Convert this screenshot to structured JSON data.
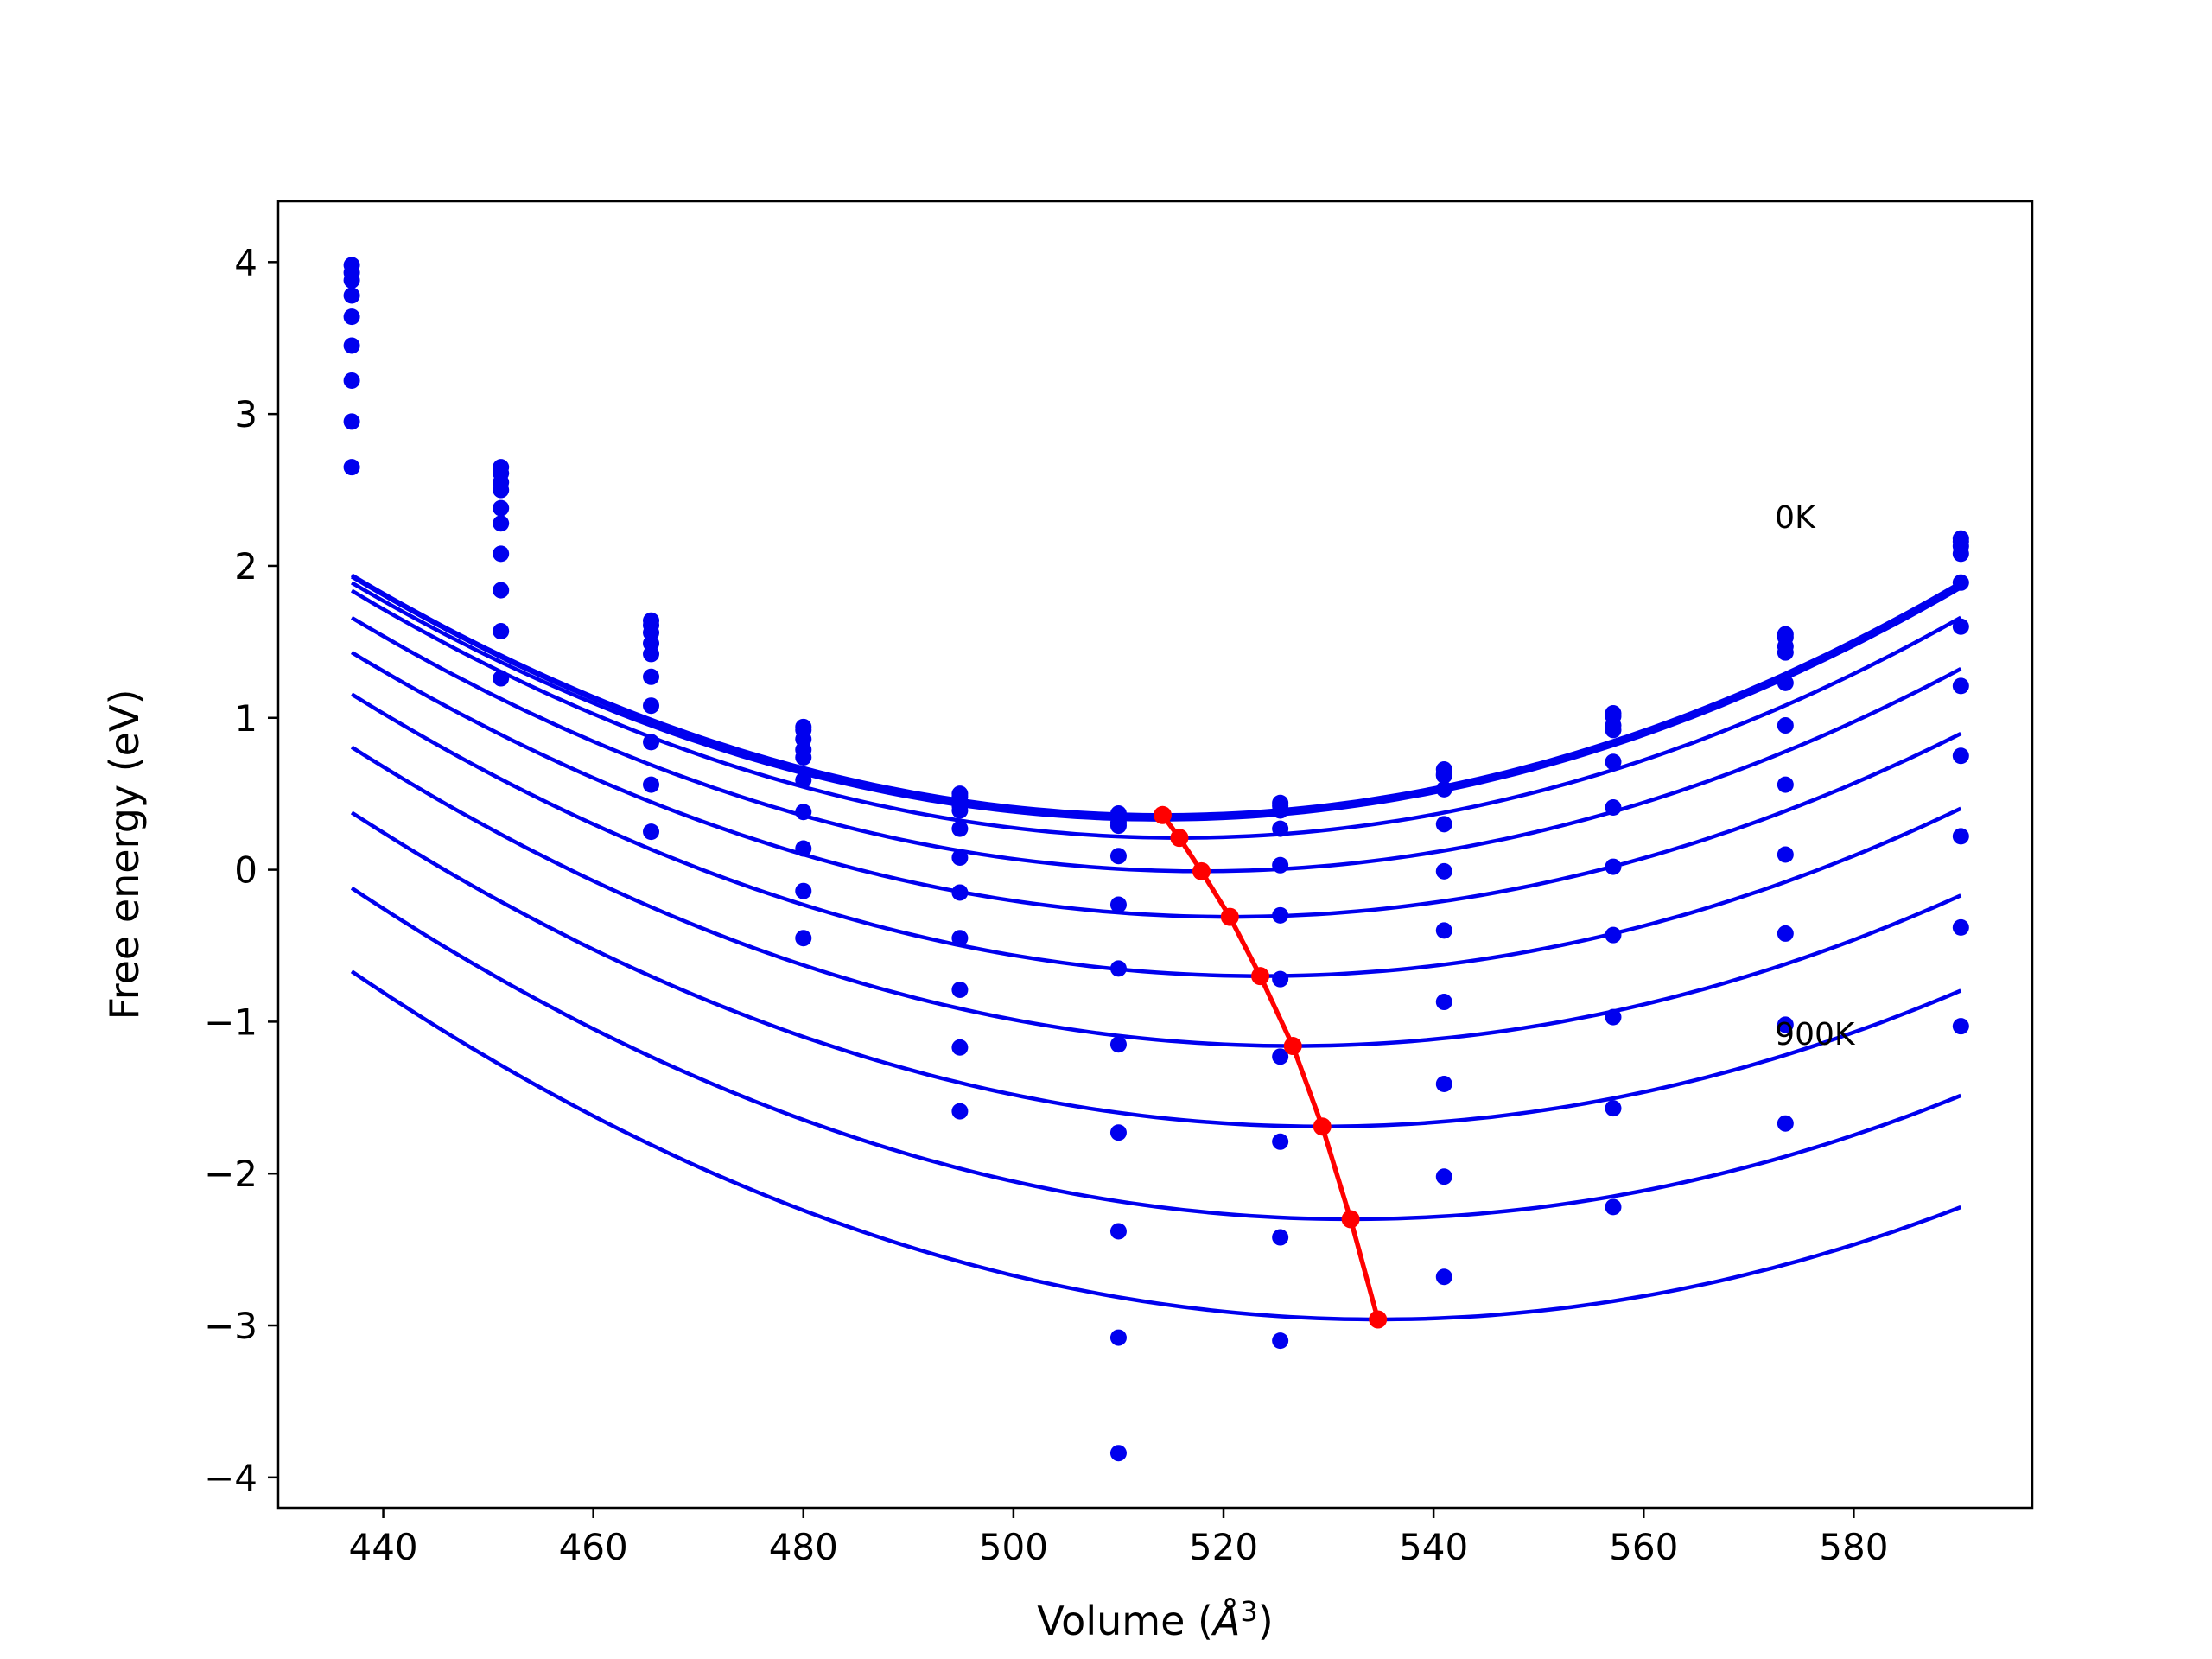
{
  "chart_data": {
    "type": "scatter",
    "title": "",
    "xlabel": "Volume (",
    "xlabel_unit": "Å",
    "xlabel_sup": "3",
    "xlabel_close": ")",
    "ylabel": "Free energy (eV)",
    "xlim": [
      430,
      597
    ],
    "ylim": [
      -4.2,
      4.4
    ],
    "xticks": [
      440,
      460,
      480,
      500,
      520,
      540,
      560,
      580
    ],
    "yticks": [
      4,
      3,
      2,
      1,
      0,
      -1,
      -2,
      -3,
      -4
    ],
    "ytick_labels": [
      "4",
      "3",
      "2",
      "1",
      "0",
      "−1",
      "−2",
      "−3",
      "−4"
    ],
    "grid": false,
    "annotations": [
      {
        "text": "0K",
        "x": 572.5,
        "y": 2.25
      },
      {
        "text": "900K",
        "x": 572.5,
        "y": -1.15
      }
    ],
    "volumes": [
      437.0,
      451.2,
      465.5,
      480.0,
      494.9,
      510.0,
      525.4,
      541.0,
      557.1,
      573.5,
      590.2
    ],
    "series": [
      {
        "values": [
          3.98,
          2.65,
          1.64,
          0.94,
          0.5,
          0.37,
          0.44,
          0.66,
          1.03,
          1.55,
          2.18
        ],
        "fit": [
          437.0,
          590.2,
          514.2,
          0.36,
          0.000265
        ]
      },
      {
        "values": [
          3.93,
          2.61,
          1.61,
          0.92,
          0.48,
          0.35,
          0.42,
          0.63,
          1.01,
          1.53,
          2.16
        ],
        "fit": [
          437.0,
          590.2,
          514.3,
          0.34,
          0.000266
        ]
      },
      {
        "values": [
          3.88,
          2.55,
          1.56,
          0.86,
          0.42,
          0.29,
          0.39,
          0.62,
          0.95,
          1.47,
          2.13
        ],
        "fit": [
          437.0,
          590.2,
          514.0,
          0.33,
          0.000263
        ]
      },
      {
        "values": [
          3.78,
          2.5,
          1.49,
          0.79,
          0.39,
          0.31,
          0.27,
          0.53,
          0.92,
          1.43,
          2.08
        ],
        "fit": [
          437.0,
          590.2,
          515.8,
          0.21,
          0.000262
        ]
      },
      {
        "values": [
          3.64,
          2.38,
          1.42,
          0.74,
          0.27,
          0.09,
          0.03,
          0.3,
          0.71,
          1.23,
          1.89
        ],
        "fit": [
          437.0,
          590.2,
          517.9,
          -0.01,
          0.000255
        ]
      },
      {
        "values": [
          3.45,
          2.28,
          1.27,
          0.59,
          0.08,
          -0.23,
          -0.3,
          -0.01,
          0.41,
          0.95,
          1.6
        ],
        "fit": [
          437.0,
          590.2,
          520.6,
          -0.31,
          0.000249
        ]
      },
      {
        "values": [
          3.22,
          2.08,
          1.08,
          0.38,
          -0.15,
          -0.65,
          -0.72,
          -0.4,
          0.02,
          0.56,
          1.21
        ],
        "fit": [
          437.0,
          590.2,
          523.5,
          -0.7,
          0.000248
        ]
      },
      {
        "values": [
          2.95,
          1.84,
          0.84,
          0.14,
          -0.45,
          -1.15,
          -1.23,
          -0.87,
          -0.43,
          0.1,
          0.75
        ],
        "fit": [
          437.0,
          590.2,
          526.6,
          -1.16,
          0.000245
        ]
      },
      {
        "values": [
          2.65,
          1.57,
          0.56,
          -0.14,
          -0.79,
          -1.73,
          -1.79,
          -1.41,
          -0.97,
          -0.42,
          0.22
        ],
        "fit": [
          437.0,
          590.2,
          529.4,
          -1.69,
          0.000242
        ]
      },
      {
        "values": [
          null,
          1.26,
          0.25,
          -0.45,
          -1.17,
          -2.38,
          -2.42,
          -2.02,
          -1.57,
          -1.02,
          -0.38
        ],
        "fit": [
          437.0,
          590.2,
          532.1,
          -2.3,
          0.000241
        ]
      },
      {
        "values": [
          null,
          null,
          null,
          null,
          -1.59,
          -3.08,
          -3.1,
          -2.68,
          -2.22,
          -1.67,
          -1.03
        ],
        "fit": [
          437.0,
          590.2,
          534.7,
          -2.96,
          0.00024
        ]
      },
      {
        "values": [
          null,
          null,
          null,
          null,
          null,
          -3.84,
          null,
          null,
          null,
          null,
          null
        ],
        "fit": null
      }
    ],
    "minimum_path": {
      "x": [
        514.2,
        515.8,
        517.9,
        520.6,
        523.5,
        526.6,
        529.4,
        532.1,
        534.7
      ],
      "y": [
        0.36,
        0.21,
        -0.01,
        -0.31,
        -0.7,
        -1.16,
        -1.69,
        -2.3,
        -2.96
      ]
    },
    "colors": {
      "curves": "#0000ee",
      "points": "#0000ee",
      "minimum_path": "#ff0000",
      "axes": "#000000"
    }
  }
}
